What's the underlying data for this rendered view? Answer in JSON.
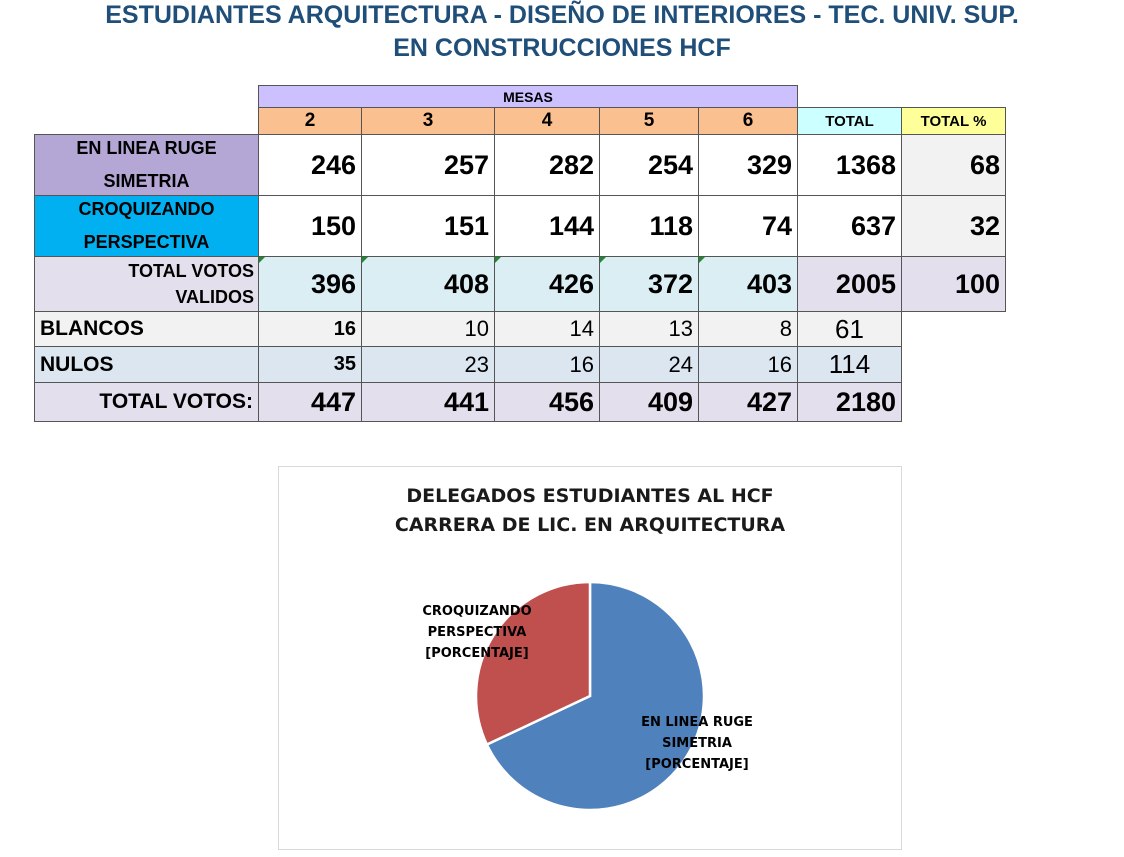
{
  "title": {
    "line1": "ESTUDIANTES ARQUITECTURA - DISEÑO DE INTERIORES - TEC. UNIV. SUP.",
    "line2": "EN CONSTRUCCIONES HCF"
  },
  "table": {
    "mesas_label": "MESAS",
    "columns": [
      "2",
      "3",
      "4",
      "5",
      "6"
    ],
    "total_label": "TOTAL",
    "total_pct_label": "TOTAL %",
    "rows": {
      "ruge": {
        "label_1": "EN LINEA RUGE",
        "label_2": "SIMETRIA",
        "values": [
          "246",
          "257",
          "282",
          "254",
          "329"
        ],
        "total": "1368",
        "pct": "68"
      },
      "croq": {
        "label_1": "CROQUIZANDO",
        "label_2": "PERSPECTIVA",
        "values": [
          "150",
          "151",
          "144",
          "118",
          "74"
        ],
        "total": "637",
        "pct": "32"
      },
      "validos": {
        "label_1": "TOTAL VOTOS",
        "label_2": "VALIDOS",
        "values": [
          "396",
          "408",
          "426",
          "372",
          "403"
        ],
        "total": "2005",
        "pct": "100"
      },
      "blancos": {
        "label": "BLANCOS",
        "values": [
          "16",
          "10",
          "14",
          "13",
          "8"
        ],
        "total": "61"
      },
      "nulos": {
        "label": "NULOS",
        "values": [
          "35",
          "23",
          "16",
          "24",
          "16"
        ],
        "total": "114"
      },
      "total_votos": {
        "label": "TOTAL VOTOS:",
        "values": [
          "447",
          "441",
          "456",
          "409",
          "427"
        ],
        "total": "2180"
      }
    }
  },
  "chart_data": {
    "type": "pie",
    "title": "DELEGADOS ESTUDIANTES AL HCF",
    "subtitle": "CARRERA DE LIC. EN ARQUITECTURA",
    "slices": [
      {
        "name": "EN LINEA RUGE SIMETRIA",
        "value": 68,
        "color": "#4f81bd",
        "label_1": "EN LINEA RUGE",
        "label_2": "SIMETRIA",
        "label_3": "[PORCENTAJE]"
      },
      {
        "name": "CROQUIZANDO PERSPECTIVA",
        "value": 32,
        "color": "#c0504d",
        "label_1": "CROQUIZANDO",
        "label_2": "PERSPECTIVA",
        "label_3": "[PORCENTAJE]"
      }
    ]
  },
  "colors": {
    "title": "#1f4e79",
    "mesas_header": "#ccc0ff",
    "col_header": "#fac090",
    "total_header": "#ccffff",
    "pct_header": "#ffff99",
    "ruge_label": "#b4a7d6",
    "croq_label": "#00b0f0",
    "light_gray": "#f2f2f2",
    "validos_bg": "#daeef3",
    "lavender": "#e4dfec",
    "nulos_bg": "#dce6f1"
  }
}
